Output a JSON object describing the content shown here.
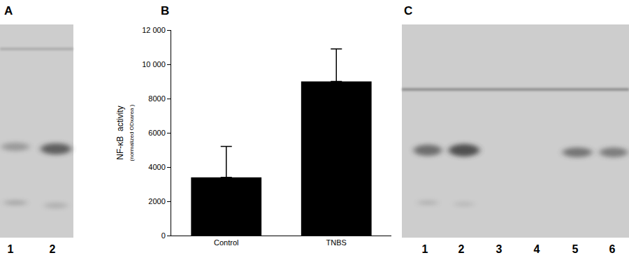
{
  "chart_data": {
    "type": "bar",
    "ylabel": "NF-κB  activity",
    "ylabel_sub": "(normalized ODxarea )",
    "categories": [
      "Control",
      "TNBS"
    ],
    "values": [
      3400,
      9000
    ],
    "errors": [
      1800,
      1900
    ],
    "color": "#000000",
    "ylim": [
      0,
      12000
    ],
    "yticks": [
      0,
      2000,
      4000,
      6000,
      8000,
      {
        "value": 10000,
        "label": "10 000"
      },
      {
        "value": 12000,
        "label": "12 000"
      }
    ],
    "grid": false
  },
  "panel_labels": [
    "A",
    "B",
    "C"
  ],
  "gels": [
    {
      "lanes": [
        "1",
        "2"
      ]
    },
    {
      "lanes": [
        "1",
        "2",
        "3",
        "4",
        "5",
        "6"
      ]
    }
  ]
}
